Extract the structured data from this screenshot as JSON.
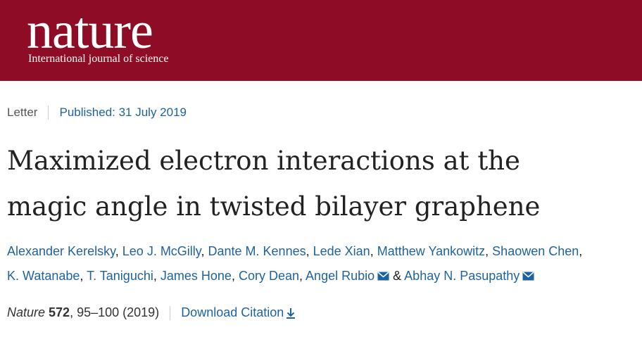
{
  "header": {
    "logo": "nature",
    "tagline": "International journal of science"
  },
  "meta": {
    "article_type": "Letter",
    "published": "Published: 31 July 2019"
  },
  "title": {
    "lines": [
      "Maximized electron interactions at the",
      "magic angle in twisted bilayer graphene"
    ]
  },
  "authors": {
    "delimiter": ",",
    "conjunction": "&",
    "lines": [
      [
        {
          "name": "Alexander Kerelsky"
        },
        {
          "name": "Leo J. McGilly"
        },
        {
          "name": "Dante M. Kennes"
        },
        {
          "name": "Lede Xian"
        },
        {
          "name": "Matthew Yankowitz"
        },
        {
          "name": "Shaowen Chen"
        }
      ],
      [
        {
          "name": "K. Watanabe"
        },
        {
          "name": "T. Taniguchi"
        },
        {
          "name": "James Hone"
        },
        {
          "name": "Cory Dean"
        },
        {
          "name": "Angel Rubio",
          "corresponding": true
        },
        {
          "name": "Abhay N. Pasupathy",
          "corresponding": true
        }
      ]
    ]
  },
  "citation": {
    "journal": "Nature",
    "volume": "572",
    "details": ", 95–100 (2019)",
    "download": "Download Citation"
  }
}
